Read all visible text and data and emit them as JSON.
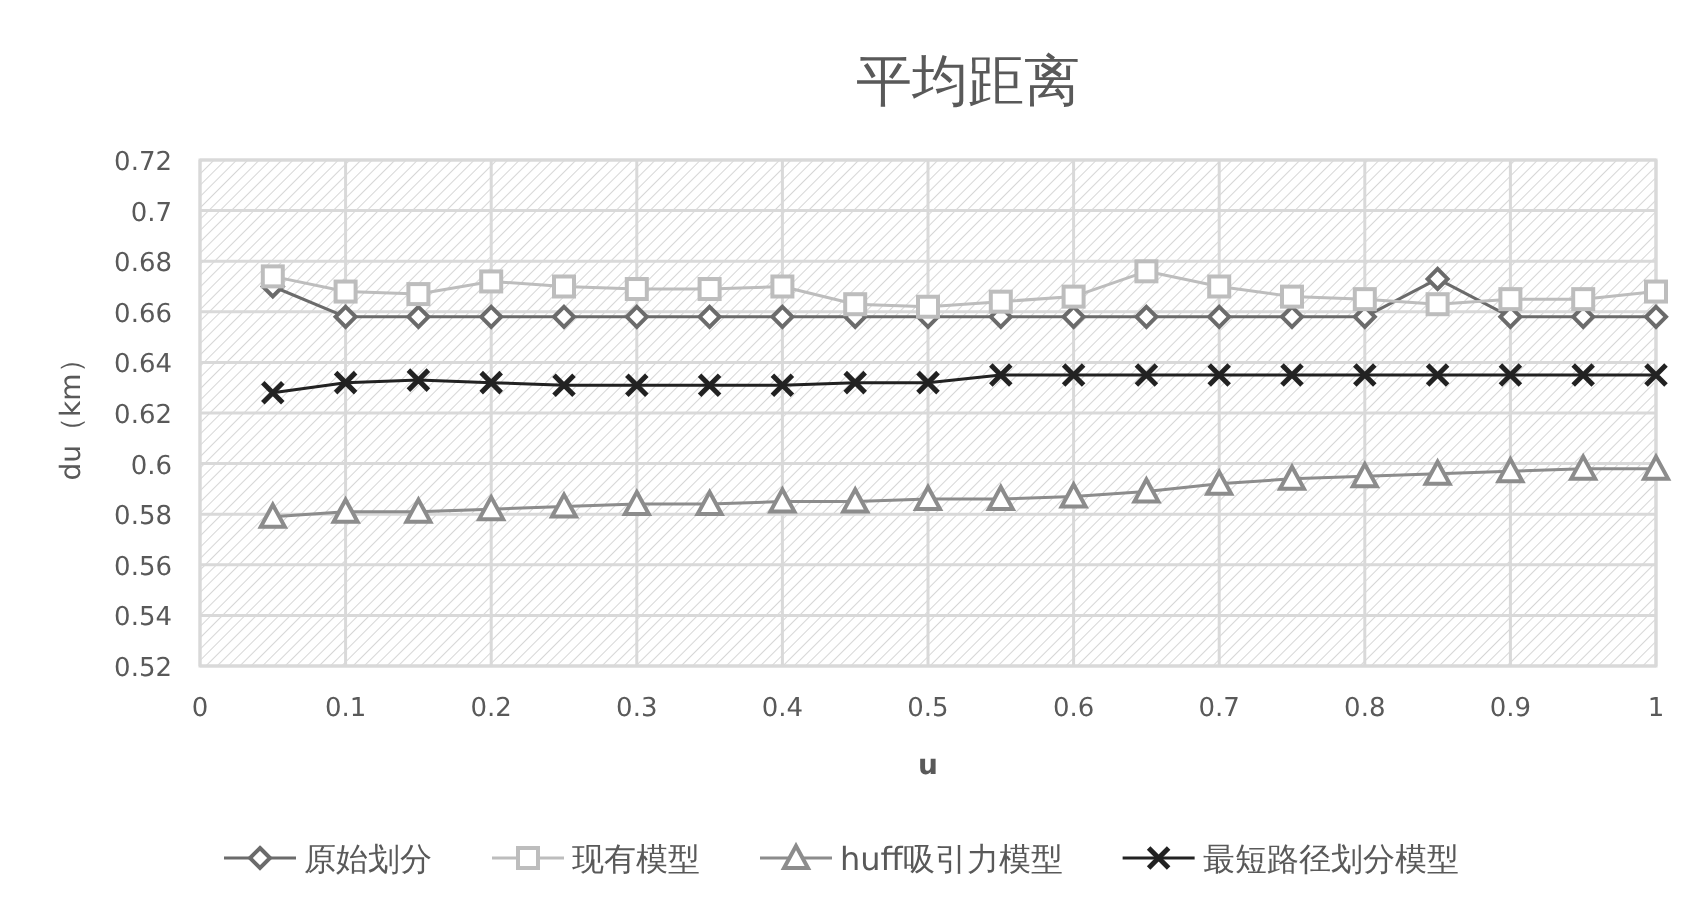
{
  "chart_data": {
    "type": "line",
    "title": "平均距离",
    "xlabel": "u",
    "ylabel": "du（km）",
    "x": [
      0.05,
      0.1,
      0.15,
      0.2,
      0.25,
      0.3,
      0.35,
      0.4,
      0.45,
      0.5,
      0.55,
      0.6,
      0.65,
      0.7,
      0.75,
      0.8,
      0.85,
      0.9,
      0.95,
      1
    ],
    "series": [
      {
        "name": "原始划分",
        "color": "#6b6b6b",
        "marker": "diamond",
        "values": [
          0.67,
          0.658,
          0.658,
          0.658,
          0.658,
          0.658,
          0.658,
          0.658,
          0.658,
          0.658,
          0.658,
          0.658,
          0.658,
          0.658,
          0.658,
          0.658,
          0.673,
          0.658,
          0.658,
          0.658
        ]
      },
      {
        "name": "现有模型",
        "color": "#bdbdbd",
        "marker": "square",
        "values": [
          0.674,
          0.668,
          0.667,
          0.672,
          0.67,
          0.669,
          0.669,
          0.67,
          0.663,
          0.662,
          0.664,
          0.666,
          0.676,
          0.67,
          0.666,
          0.665,
          0.663,
          0.665,
          0.665,
          0.668
        ]
      },
      {
        "name": "huff吸引力模型",
        "color": "#8c8c8c",
        "marker": "triangle",
        "values": [
          0.579,
          0.581,
          0.581,
          0.582,
          0.583,
          0.584,
          0.584,
          0.585,
          0.585,
          0.586,
          0.586,
          0.587,
          0.589,
          0.592,
          0.594,
          0.595,
          0.596,
          0.597,
          0.598,
          0.598
        ]
      },
      {
        "name": "最短路径划分模型",
        "color": "#222222",
        "marker": "cross",
        "values": [
          0.628,
          0.632,
          0.633,
          0.632,
          0.631,
          0.631,
          0.631,
          0.631,
          0.632,
          0.632,
          0.635,
          0.635,
          0.635,
          0.635,
          0.635,
          0.635,
          0.635,
          0.635,
          0.635,
          0.635
        ]
      }
    ],
    "xlim": [
      0,
      1
    ],
    "xticks": [
      0,
      0.1,
      0.2,
      0.3,
      0.4,
      0.5,
      0.6,
      0.7,
      0.8,
      0.9,
      1
    ],
    "ylim": [
      0.52,
      0.72
    ],
    "yticks": [
      0.52,
      0.54,
      0.56,
      0.58,
      0.6,
      0.62,
      0.64,
      0.66,
      0.68,
      0.7,
      0.72
    ],
    "grid": true,
    "legend": "bottom"
  }
}
